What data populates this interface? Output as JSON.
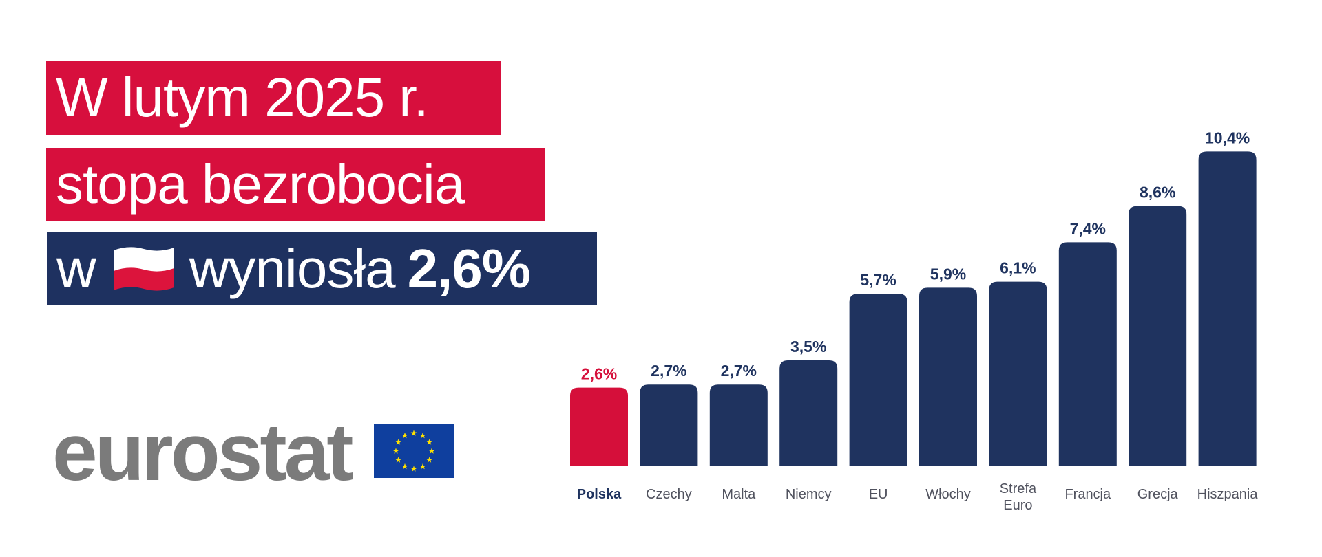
{
  "headline": {
    "line1": "W lutym 2025 r.",
    "line2": "stopa bezrobocia",
    "line3_prefix": "w",
    "line3_flag_icon": "poland-flag-icon",
    "line3_middle": "wyniosła",
    "line3_value": "2,6%"
  },
  "logo": {
    "text": "eurostat",
    "flag_icon": "eu-flag-icon"
  },
  "colors": {
    "highlight": "#d50f3a",
    "bar": "#1f335f",
    "label_grey": "#50525e",
    "logo_grey": "#7b7b7b"
  },
  "chart_data": {
    "type": "bar",
    "title": "",
    "xlabel": "",
    "ylabel": "",
    "ylim": [
      0,
      10.4
    ],
    "grid": false,
    "highlight_index": 0,
    "categories": [
      "Polska",
      "Czechy",
      "Malta",
      "Niemcy",
      "EU",
      "Włochy",
      "Strefa Euro",
      "Francja",
      "Grecja",
      "Hiszpania"
    ],
    "category_lines": [
      [
        "Polska"
      ],
      [
        "Czechy"
      ],
      [
        "Malta"
      ],
      [
        "Niemcy"
      ],
      [
        "EU"
      ],
      [
        "Włochy"
      ],
      [
        "Strefa",
        "Euro"
      ],
      [
        "Francja"
      ],
      [
        "Grecja"
      ],
      [
        "Hiszpania"
      ]
    ],
    "values": [
      2.6,
      2.7,
      2.7,
      3.5,
      5.7,
      5.9,
      6.1,
      7.4,
      8.6,
      10.4
    ],
    "value_labels": [
      "2,6%",
      "2,7%",
      "2,7%",
      "3,5%",
      "5,7%",
      "5,9%",
      "6,1%",
      "7,4%",
      "8,6%",
      "10,4%"
    ]
  }
}
